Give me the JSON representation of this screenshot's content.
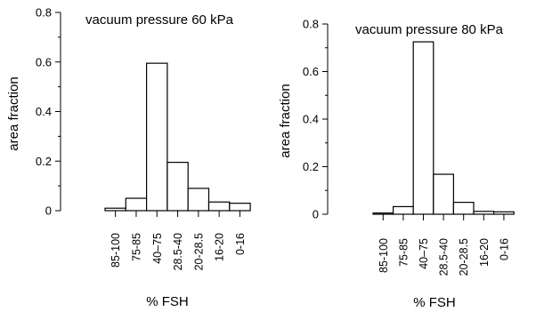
{
  "chart_data": [
    {
      "type": "bar",
      "title": "vacuum pressure 60 kPa",
      "xlabel": "% FSH",
      "ylabel": "area fraction",
      "categories": [
        "85-100",
        "75-85",
        "40–75",
        "28.5-40",
        "20-28.5",
        "16-20",
        "0-16"
      ],
      "values": [
        0.01,
        0.05,
        0.595,
        0.195,
        0.09,
        0.035,
        0.03
      ],
      "yticks": [
        "0",
        "0.2",
        "0.4",
        "0.6",
        "0.8"
      ],
      "ylim": [
        0,
        0.8
      ],
      "grid": false
    },
    {
      "type": "bar",
      "title": "vacuum pressure 80 kPa",
      "xlabel": "% FSH",
      "ylabel": "area fraction",
      "categories": [
        "85-100",
        "75-85",
        "40–75",
        "28.5-40",
        "20-28.5",
        "16-20",
        "0-16"
      ],
      "values": [
        0.005,
        0.032,
        0.725,
        0.168,
        0.05,
        0.012,
        0.01
      ],
      "yticks": [
        "0",
        "0.2",
        "0.4",
        "0.6",
        "0.8"
      ],
      "ylim": [
        0,
        0.8
      ],
      "grid": false
    }
  ]
}
